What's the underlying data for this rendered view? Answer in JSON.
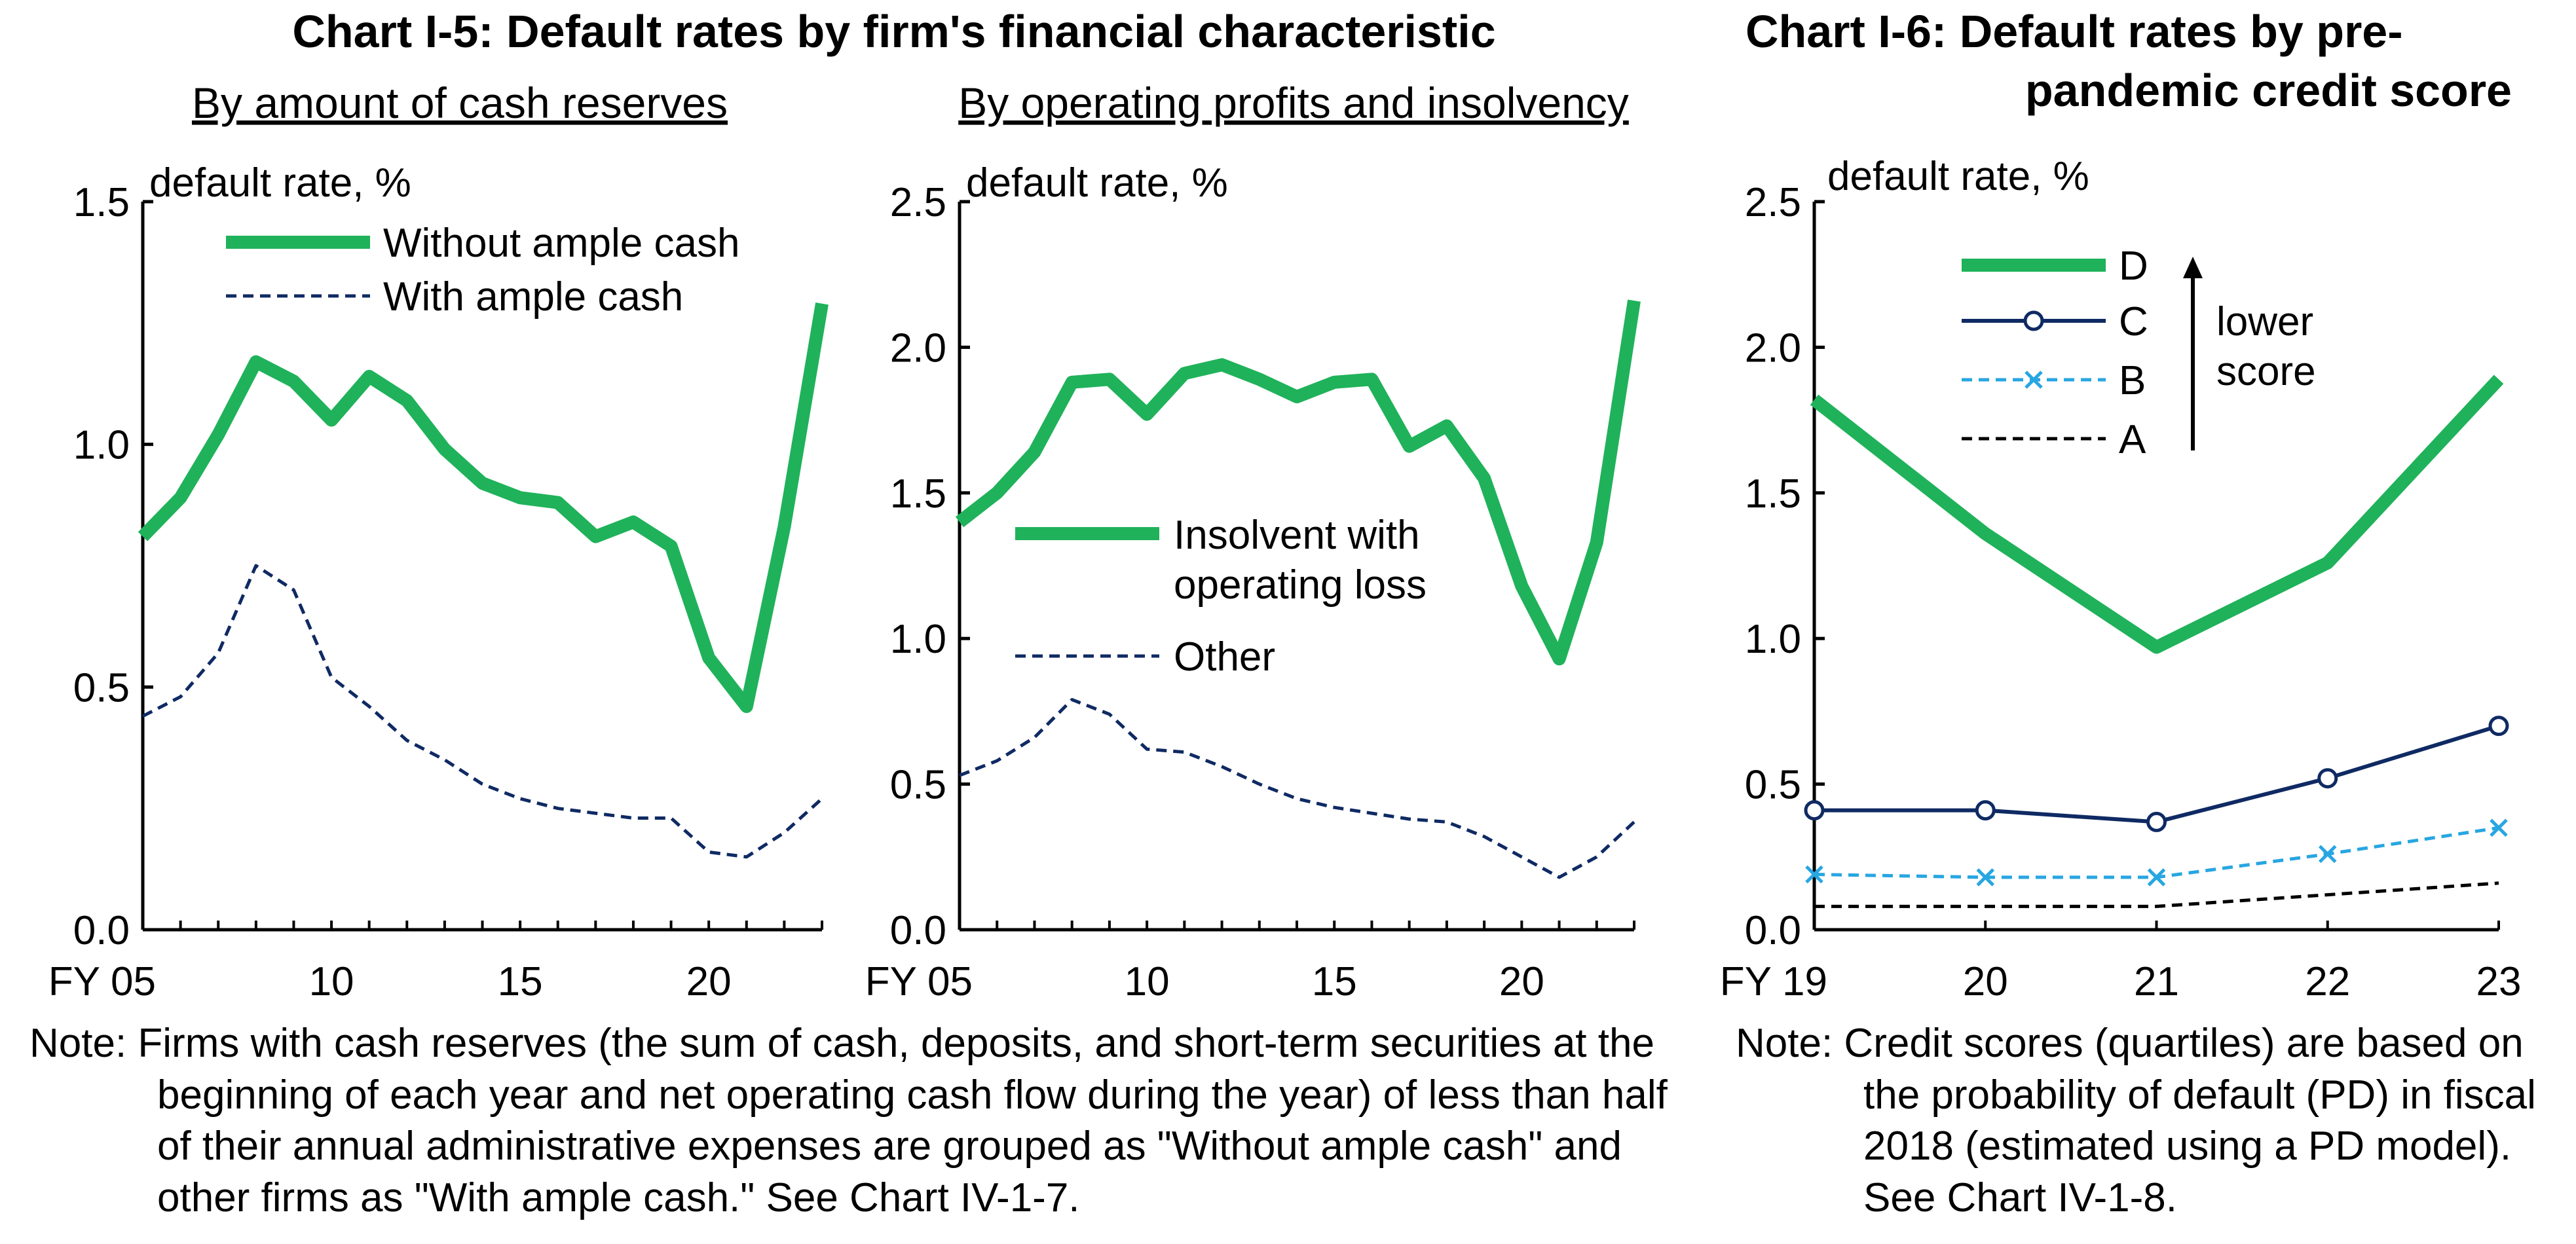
{
  "colors": {
    "green": "#1fb25a",
    "navy": "#0f2a63",
    "cyan": "#27a6e1",
    "black": "#000000"
  },
  "chart_i5": {
    "title": "Chart I-5: Default rates by firm's financial characteristic"
  },
  "chart_i6": {
    "title_line1": "Chart I-6: Default rates by pre-",
    "title_line2": "pandemic credit score"
  },
  "notes": {
    "left": "Note: Firms with cash reserves (the sum of cash, deposits, and short-term securities at the beginning of each year and net operating cash flow during the year) of less than half of their annual administrative expenses are grouped as \"Without ample cash\" and other firms as \"With ample cash.\" See Chart IV-1-7.",
    "right": "Note: Credit scores (quartiles) are based on the probability of default (PD) in fiscal 2018 (estimated using a PD model). See Chart IV-1-8."
  },
  "legend_extra": {
    "arrow_label_1": "lower",
    "arrow_label_2": "score"
  },
  "chart_data": [
    {
      "type": "line",
      "subtitle": "By amount of cash reserves",
      "ylabel": "default rate, %",
      "ylim": [
        0,
        1.5
      ],
      "yticks": [
        "0.0",
        "0.5",
        "1.0",
        "1.5"
      ],
      "x": [
        2005,
        2006,
        2007,
        2008,
        2009,
        2010,
        2011,
        2012,
        2013,
        2014,
        2015,
        2016,
        2017,
        2018,
        2019,
        2020,
        2021,
        2022,
        2023
      ],
      "xticks": [
        {
          "v": 2005,
          "label": "FY 05"
        },
        {
          "v": 2010,
          "label": "10"
        },
        {
          "v": 2015,
          "label": "15"
        },
        {
          "v": 2020,
          "label": "20"
        }
      ],
      "legend_position": "top",
      "series": [
        {
          "name": "Without ample cash",
          "color": "#1fb25a",
          "style": "solid-thick",
          "values": [
            0.81,
            0.89,
            1.02,
            1.17,
            1.13,
            1.05,
            1.14,
            1.09,
            0.99,
            0.92,
            0.89,
            0.88,
            0.81,
            0.84,
            0.79,
            0.56,
            0.46,
            0.83,
            1.29
          ]
        },
        {
          "name": "With ample cash",
          "color": "#0f2a63",
          "style": "dashed",
          "values": [
            0.44,
            0.48,
            0.57,
            0.75,
            0.7,
            0.52,
            0.46,
            0.39,
            0.35,
            0.3,
            0.27,
            0.25,
            0.24,
            0.23,
            0.23,
            0.16,
            0.15,
            0.2,
            0.27
          ]
        }
      ]
    },
    {
      "type": "line",
      "subtitle": "By operating profits and insolvency",
      "ylabel": "default rate, %",
      "ylim": [
        0,
        2.5
      ],
      "yticks": [
        "0.0",
        "0.5",
        "1.0",
        "1.5",
        "2.0",
        "2.5"
      ],
      "x": [
        2005,
        2006,
        2007,
        2008,
        2009,
        2010,
        2011,
        2012,
        2013,
        2014,
        2015,
        2016,
        2017,
        2018,
        2019,
        2020,
        2021,
        2022,
        2023
      ],
      "xticks": [
        {
          "v": 2005,
          "label": "FY 05"
        },
        {
          "v": 2010,
          "label": "10"
        },
        {
          "v": 2015,
          "label": "15"
        },
        {
          "v": 2020,
          "label": "20"
        }
      ],
      "legend_position": "center-left",
      "series": [
        {
          "name_line1": "Insolvent with",
          "name_line2": "operating loss",
          "color": "#1fb25a",
          "style": "solid-thick",
          "values": [
            1.4,
            1.5,
            1.64,
            1.88,
            1.89,
            1.77,
            1.91,
            1.94,
            1.89,
            1.83,
            1.88,
            1.89,
            1.66,
            1.73,
            1.55,
            1.18,
            0.93,
            1.33,
            2.16
          ]
        },
        {
          "name": "Other",
          "color": "#0f2a63",
          "style": "dashed",
          "values": [
            0.53,
            0.58,
            0.66,
            0.79,
            0.74,
            0.62,
            0.61,
            0.56,
            0.5,
            0.45,
            0.42,
            0.4,
            0.38,
            0.37,
            0.32,
            0.25,
            0.18,
            0.25,
            0.37
          ]
        }
      ]
    },
    {
      "type": "line",
      "ylabel": "default rate, %",
      "ylim": [
        0,
        2.5
      ],
      "yticks": [
        "0.0",
        "0.5",
        "1.0",
        "1.5",
        "2.0",
        "2.5"
      ],
      "x": [
        2019,
        2020,
        2021,
        2022,
        2023
      ],
      "xticks": [
        {
          "v": 2019,
          "label": "FY 19"
        },
        {
          "v": 2020,
          "label": "20"
        },
        {
          "v": 2021,
          "label": "21"
        },
        {
          "v": 2022,
          "label": "22"
        },
        {
          "v": 2023,
          "label": "23"
        }
      ],
      "legend_position": "top-left",
      "series": [
        {
          "name": "D",
          "color": "#1fb25a",
          "style": "solid-thick",
          "values": [
            1.82,
            1.36,
            0.97,
            1.26,
            1.89
          ]
        },
        {
          "name": "C",
          "color": "#0f2a63",
          "style": "solid-circle",
          "values": [
            0.41,
            0.41,
            0.37,
            0.52,
            0.7
          ]
        },
        {
          "name": "B",
          "color": "#27a6e1",
          "style": "dashed-x",
          "values": [
            0.19,
            0.18,
            0.18,
            0.26,
            0.35
          ]
        },
        {
          "name": "A",
          "color": "#000000",
          "style": "dashed",
          "values": [
            0.08,
            0.08,
            0.08,
            0.12,
            0.16
          ]
        }
      ]
    }
  ]
}
